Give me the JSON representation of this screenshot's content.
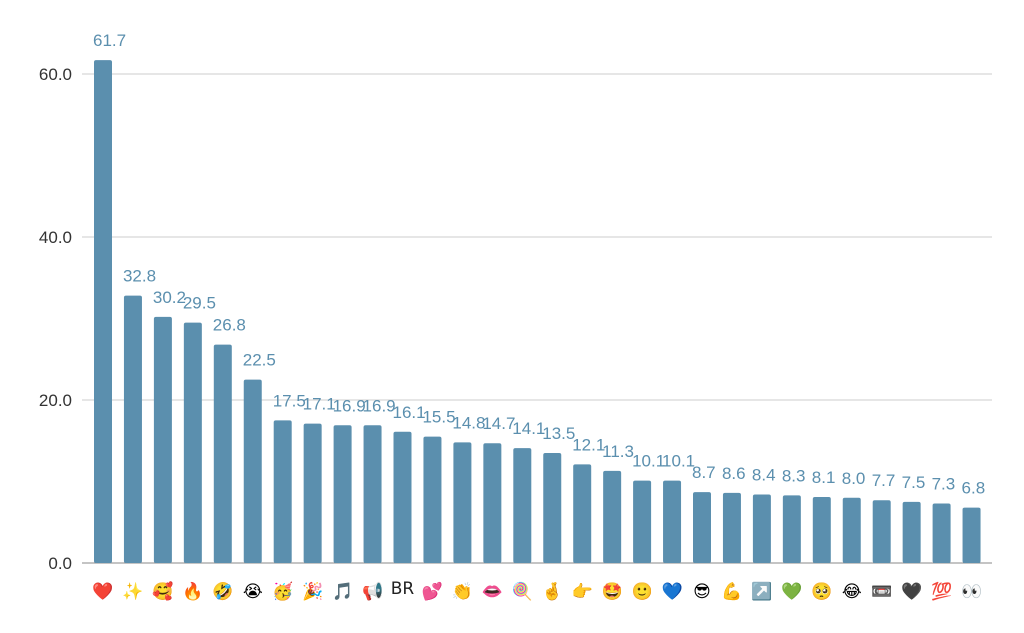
{
  "chart_data": {
    "type": "bar",
    "categories": [
      "❤️",
      "✨",
      "🥰",
      "🔥",
      "🤣",
      "😭",
      "🥳",
      "🎉",
      "🎵",
      "📢",
      "BR",
      "💕",
      "👏",
      "👄",
      "🍭",
      "🤞",
      "👉",
      "🤩",
      "🙂",
      "💙",
      "😎",
      "💪",
      "↗️",
      "💚",
      "🥺",
      "😂",
      "📼",
      "🖤",
      "💯",
      "👀"
    ],
    "values": [
      61.7,
      32.8,
      30.2,
      29.5,
      26.8,
      22.5,
      17.5,
      17.1,
      16.9,
      16.9,
      16.1,
      15.5,
      14.8,
      14.7,
      14.1,
      13.5,
      12.1,
      11.3,
      10.1,
      10.1,
      8.7,
      8.6,
      8.4,
      8.3,
      8.1,
      8.0,
      7.7,
      7.5,
      7.3,
      6.8
    ],
    "data_labels": [
      "61.7",
      "32.8",
      "30.2",
      "29.5",
      "26.8",
      "22.5",
      "17.5",
      "17.1",
      "16.9",
      "16.9",
      "16.1",
      "15.5",
      "14.8",
      "14.7",
      "14.1",
      "13.5",
      "12.1",
      "11.3",
      "10.1",
      "10.1",
      "8.7",
      "8.6",
      "8.4",
      "8.3",
      "8.1",
      "8.0",
      "7.7",
      "7.5",
      "7.3",
      "6.8"
    ],
    "y_ticks": [
      "0.0",
      "20.0",
      "40.0",
      "60.0"
    ],
    "ylim": [
      0,
      61.7
    ],
    "grid": true,
    "bar_color": "#5b8fae",
    "label_color": "#5b8fae"
  }
}
